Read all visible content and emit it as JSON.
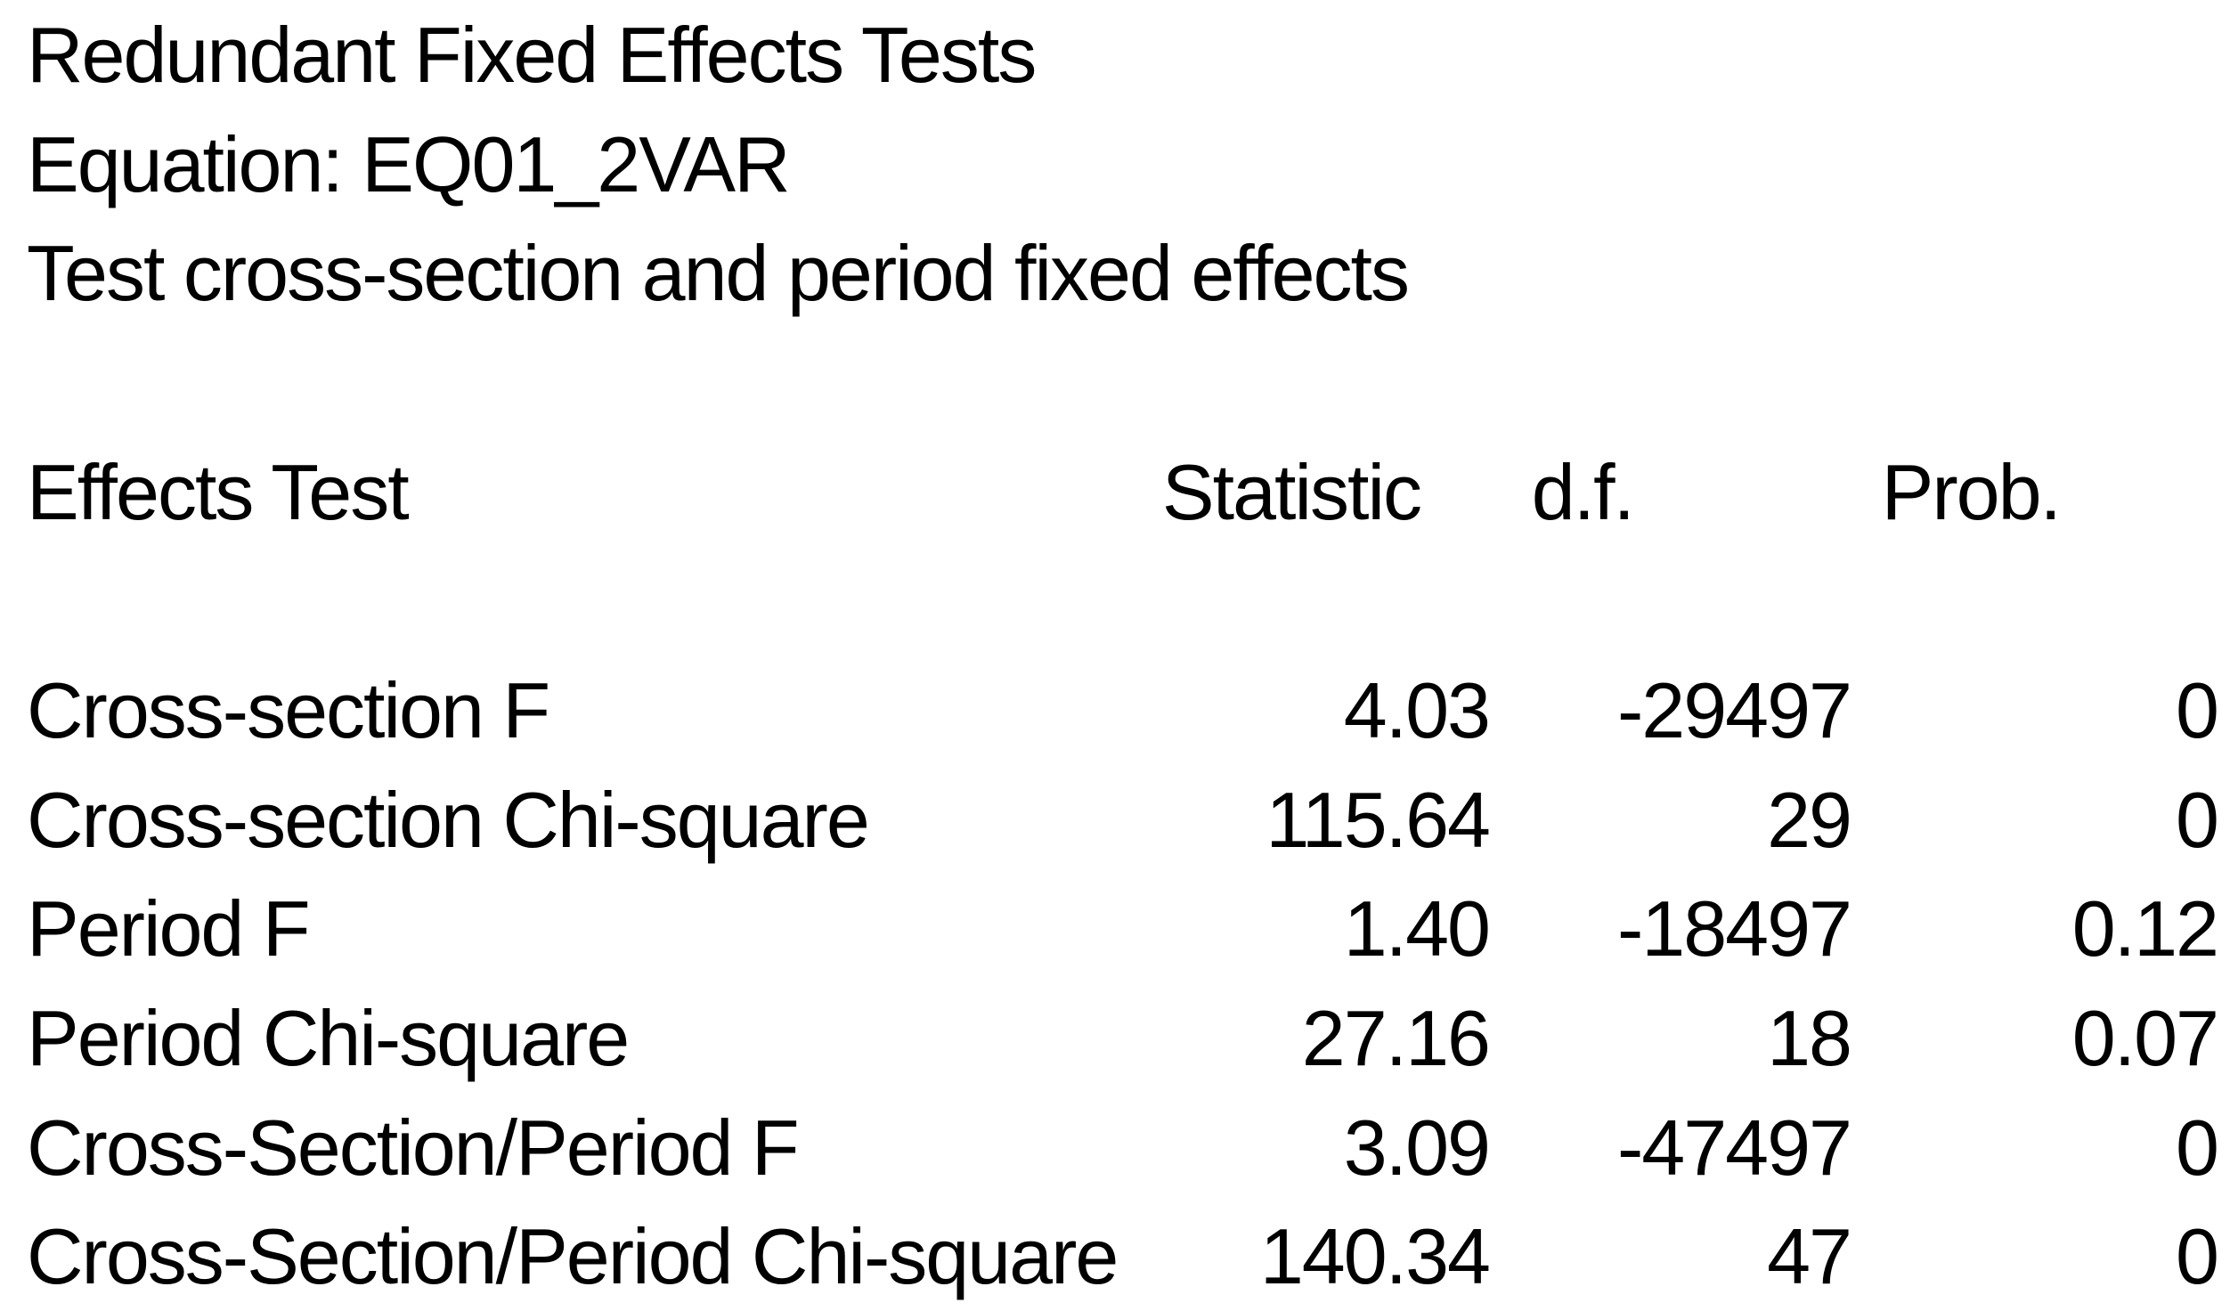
{
  "header": {
    "title": "Redundant Fixed Effects Tests",
    "equation": "Equation: EQ01_2VAR",
    "description": "Test cross-section and period fixed effects"
  },
  "table": {
    "columns": {
      "label": "Effects Test",
      "statistic": "Statistic",
      "df": "d.f.",
      "prob": "Prob."
    },
    "rows": [
      {
        "label": "Cross-section F",
        "statistic": "4.03",
        "df": "-29497",
        "prob": "0"
      },
      {
        "label": "Cross-section Chi-square",
        "statistic": "115.64",
        "df": "29",
        "prob": "0"
      },
      {
        "label": "Period F",
        "statistic": "1.40",
        "df": "-18497",
        "prob": "0.12"
      },
      {
        "label": "Period Chi-square",
        "statistic": "27.16",
        "df": "18",
        "prob": "0.07"
      },
      {
        "label": "Cross-Section/Period F",
        "statistic": "3.09",
        "df": "-47497",
        "prob": "0"
      },
      {
        "label": "Cross-Section/Period Chi-square",
        "statistic": "140.34",
        "df": "47",
        "prob": "0"
      }
    ]
  },
  "colors": {
    "text": "#000000",
    "background": "#ffffff"
  }
}
